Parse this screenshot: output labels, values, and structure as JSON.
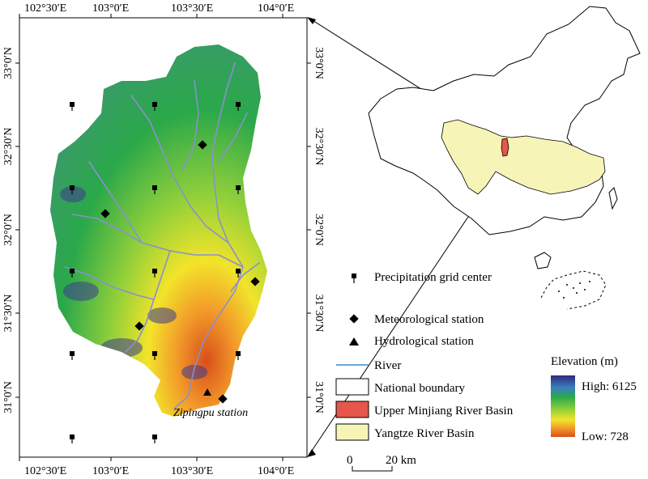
{
  "map": {
    "lon_labels": [
      "102°30′E",
      "103°0′E",
      "103°30′E",
      "104°0′E"
    ],
    "lat_labels": [
      "33°0′N",
      "32°30′N",
      "32°0′N",
      "31°30′N",
      "31°0′N"
    ],
    "station_label": "Zipingpu station"
  },
  "legend": {
    "items": [
      {
        "label": "Precipitation grid center",
        "symbol": "pin-icon"
      },
      {
        "label": "Meteorological station",
        "symbol": "diamond-icon"
      },
      {
        "label": "Hydrological station",
        "symbol": "triangle-icon"
      },
      {
        "label": "River",
        "symbol": "line",
        "color": "#6ea6d8"
      },
      {
        "label": "National boundary",
        "symbol": "box",
        "color": "#ffffff"
      },
      {
        "label": "Upper Minjiang River Basin",
        "symbol": "box",
        "color": "#e4574a"
      },
      {
        "label": "Yangtze River Basin",
        "symbol": "box",
        "color": "#f7f4b8"
      }
    ],
    "elevation": {
      "title": "Elevation (m)",
      "high": "High: 6125",
      "low": "Low: 728",
      "colors": [
        "#2f2a7a",
        "#3a7fbf",
        "#2aa84a",
        "#8fcf3a",
        "#f2e42a",
        "#f29a2a",
        "#d94f1a"
      ]
    },
    "scale": {
      "zero": "0",
      "distance": "20 km"
    }
  }
}
